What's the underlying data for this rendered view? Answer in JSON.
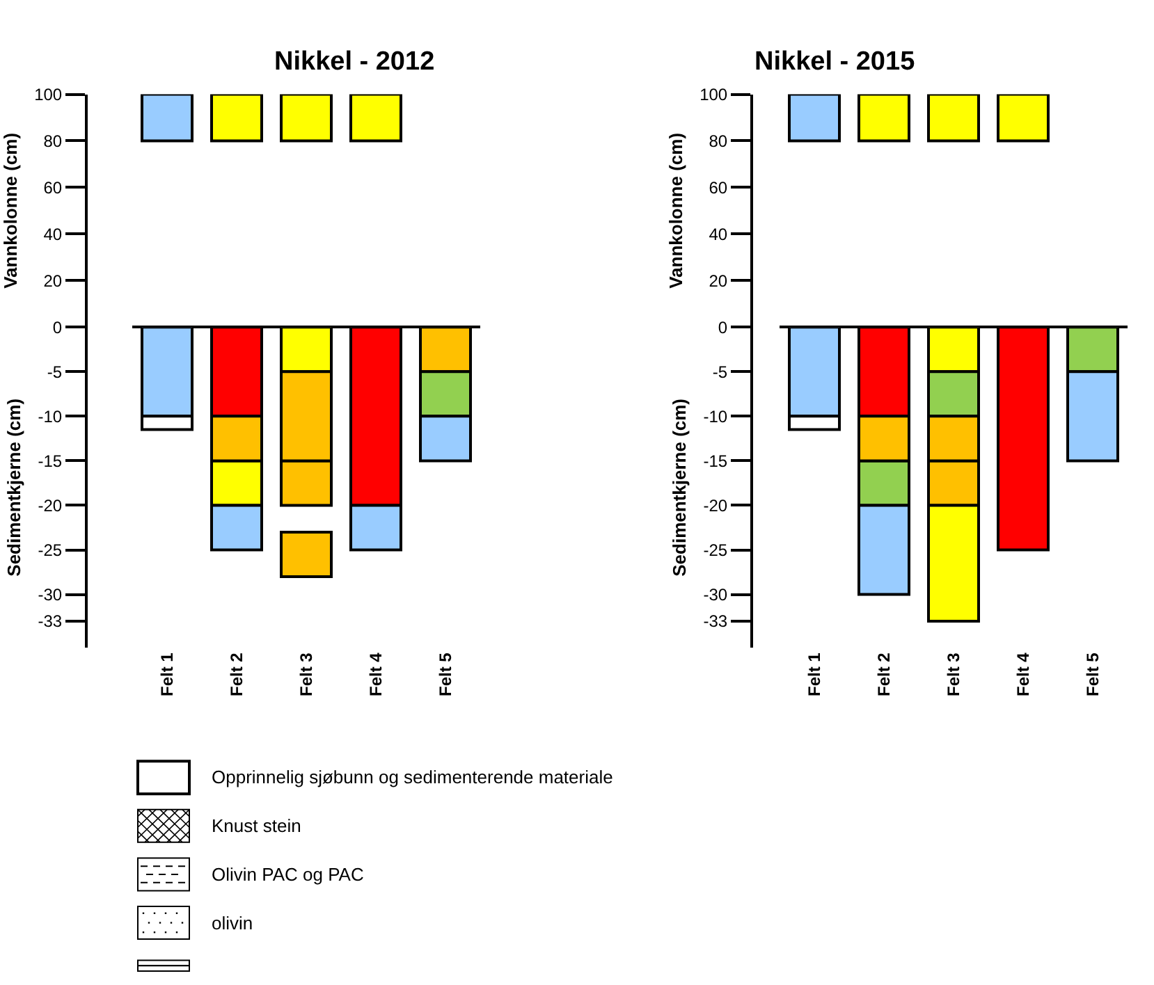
{
  "chart_data": [
    {
      "type": "bar",
      "title": "Nikkel - 2012",
      "ylabel": "Vannkolonne (cm)",
      "categories": [
        "Felt 1",
        "Felt 2",
        "Felt 3",
        "Felt 4",
        "Felt 5"
      ],
      "ylim": [
        0,
        100
      ],
      "yticks": [
        0,
        20,
        40,
        60,
        80,
        100
      ],
      "tick_labels": "y",
      "series": [
        {
          "colors": [
            "#99ccff",
            "#ffff00",
            "#ffff00",
            "#ffff00",
            null
          ],
          "base": [
            80,
            80,
            80,
            80,
            null
          ],
          "values": [
            20,
            20,
            20,
            20,
            null
          ]
        }
      ]
    },
    {
      "type": "bar",
      "ylabel": "Sedimentkjerne (cm)",
      "categories": [
        "Felt 1",
        "Felt 2",
        "Felt 3",
        "Felt 4",
        "Felt 5"
      ],
      "ylim": [
        -36,
        0
      ],
      "yticks": [
        -5,
        -10,
        -15,
        -20,
        -25,
        -30,
        -33
      ],
      "annotations": [
        "Opprinnelig sjøbunn og sedimenterende materiale",
        "Knust stein",
        "Olivin PAC og PAC",
        "olivin"
      ],
      "series": [
        {
          "colors": [
            null,
            "#ffff00",
            "#ffc000",
            null,
            "#ffc000"
          ],
          "base": [
            null,
            -15,
            -15,
            null,
            0
          ],
          "values": [
            null,
            -5,
            -5,
            null,
            -5
          ]
        },
        {
          "colors": [
            null,
            "#99ccff",
            "#ffc000",
            null,
            "#92d050"
          ],
          "base": [
            null,
            -20,
            -23,
            null,
            -5
          ],
          "values": [
            null,
            -5,
            -5,
            null,
            -5
          ]
        },
        {
          "colors": [
            null,
            null,
            null,
            null,
            "#99ccff"
          ],
          "base": [
            null,
            null,
            null,
            null,
            -10
          ],
          "values": [
            null,
            null,
            null,
            null,
            -5
          ]
        },
        {
          "colors": [
            "#99ccff",
            null,
            "#ffff00",
            null,
            null
          ],
          "base": [
            0,
            null,
            0,
            null,
            null
          ],
          "values": [
            -10,
            null,
            -5,
            null,
            null
          ]
        },
        {
          "colors": [
            null,
            "#ff0000",
            "#ffc000",
            null,
            null
          ],
          "base": [
            null,
            0,
            -5,
            null,
            null
          ],
          "values": [
            null,
            -10,
            -10,
            null,
            null
          ]
        },
        {
          "colors": [
            null,
            "#ffc000",
            null,
            null,
            null
          ],
          "base": [
            null,
            -10,
            null,
            null,
            null
          ],
          "values": [
            null,
            -5,
            null,
            null,
            null
          ]
        },
        {
          "colors": [
            null,
            null,
            null,
            "#ff0000",
            null
          ],
          "base": [
            null,
            null,
            null,
            0,
            null
          ],
          "values": [
            null,
            null,
            null,
            -20,
            null
          ]
        },
        {
          "colors": [
            null,
            null,
            null,
            "#99ccff",
            null
          ],
          "base": [
            null,
            null,
            null,
            -20,
            null
          ],
          "values": [
            null,
            null,
            null,
            -5,
            null
          ]
        },
        {
          "colors": [
            "#ffffff",
            null,
            null,
            null,
            null
          ],
          "base": [
            -10,
            null,
            null,
            null,
            null
          ],
          "values": [
            -1.5,
            null,
            null,
            null,
            null
          ]
        }
      ]
    },
    {
      "type": "bar",
      "title": "Nikkel - 2015",
      "ylabel": "Vannkolonne (cm)",
      "categories": [
        "Felt 1",
        "Felt 2",
        "Felt 3",
        "Felt 4",
        "Felt 5"
      ],
      "ylim": [
        0,
        100
      ],
      "yticks": [
        0,
        20,
        40,
        60,
        80,
        100
      ],
      "tick_labels": "y",
      "series": [
        {
          "colors": [
            "#99ccff",
            "#ffff00",
            "#ffff00",
            "#ffff00",
            null
          ],
          "base": [
            80,
            80,
            80,
            80,
            null
          ],
          "values": [
            20,
            20,
            20,
            20,
            null
          ]
        }
      ]
    },
    {
      "type": "bar",
      "ylabel": "Sedimentkjerne (cm)",
      "categories": [
        "Felt 1",
        "Felt 2",
        "Felt 3",
        "Felt 4",
        "Felt 5"
      ],
      "ylim": [
        -36,
        0
      ],
      "yticks": [
        -5,
        -10,
        -15,
        -20,
        -25,
        -30,
        -33
      ],
      "series": [
        {
          "colors": [
            null,
            "#92d050",
            "#ffc000",
            null,
            "#92d050"
          ],
          "base": [
            null,
            -15,
            -15,
            null,
            0
          ],
          "values": [
            null,
            -5,
            -5,
            null,
            -5
          ]
        },
        {
          "colors": [
            null,
            "#99ccff",
            "#ffff00",
            null,
            "#99ccff"
          ],
          "base": [
            null,
            -20,
            -20,
            null,
            -5
          ],
          "values": [
            null,
            -10,
            -13,
            null,
            -10
          ]
        },
        {
          "colors": [
            "#99ccff",
            null,
            "#ffff00",
            null,
            null
          ],
          "base": [
            0,
            null,
            0,
            null,
            null
          ],
          "values": [
            -10,
            null,
            -5,
            null,
            null
          ]
        },
        {
          "colors": [
            null,
            "#ff0000",
            "#92d050",
            null,
            null
          ],
          "base": [
            null,
            0,
            -5,
            null,
            null
          ],
          "values": [
            null,
            -10,
            -5,
            null,
            null
          ]
        },
        {
          "colors": [
            null,
            "#ffc000",
            "#ffc000",
            null,
            null
          ],
          "base": [
            null,
            -10,
            -10,
            null,
            null
          ],
          "values": [
            null,
            -5,
            -5,
            null,
            null
          ]
        },
        {
          "colors": [
            null,
            null,
            null,
            "#ff0000",
            null
          ],
          "base": [
            null,
            null,
            null,
            0,
            null
          ],
          "values": [
            null,
            null,
            null,
            -25,
            null
          ]
        },
        {
          "colors": [
            "#ffffff",
            null,
            null,
            null,
            null
          ],
          "base": [
            -10,
            null,
            null,
            null,
            null
          ],
          "values": [
            -1.5,
            null,
            null,
            null,
            null
          ]
        }
      ]
    }
  ]
}
